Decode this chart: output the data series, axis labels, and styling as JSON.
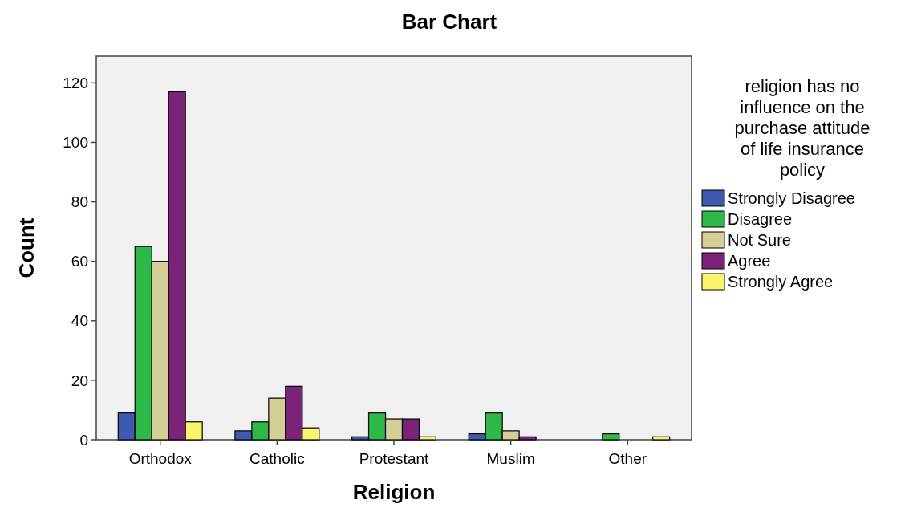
{
  "chart_data": {
    "type": "bar",
    "title": "Bar Chart",
    "xlabel": "Religion",
    "ylabel": "Count",
    "legend_title": "religion has no influence on the purchase attitude of life insurance policy",
    "categories": [
      "Orthodox",
      "Catholic",
      "Protestant",
      "Muslim",
      "Other"
    ],
    "series": [
      {
        "name": "Strongly Disagree",
        "color": "#3d5aae",
        "values": [
          9,
          3,
          1,
          2,
          0
        ]
      },
      {
        "name": "Disagree",
        "color": "#2fb84a",
        "values": [
          65,
          6,
          9,
          9,
          2
        ]
      },
      {
        "name": "Not Sure",
        "color": "#d4cf96",
        "values": [
          60,
          14,
          7,
          3,
          0
        ]
      },
      {
        "name": "Agree",
        "color": "#7b2379",
        "values": [
          117,
          18,
          7,
          1,
          0
        ]
      },
      {
        "name": "Strongly Agree",
        "color": "#faf46a",
        "values": [
          6,
          4,
          1,
          0,
          1
        ]
      }
    ],
    "ylim": [
      0,
      129
    ],
    "yticks": [
      0,
      20,
      40,
      60,
      80,
      100,
      120
    ],
    "grid": false,
    "legend": "right"
  }
}
